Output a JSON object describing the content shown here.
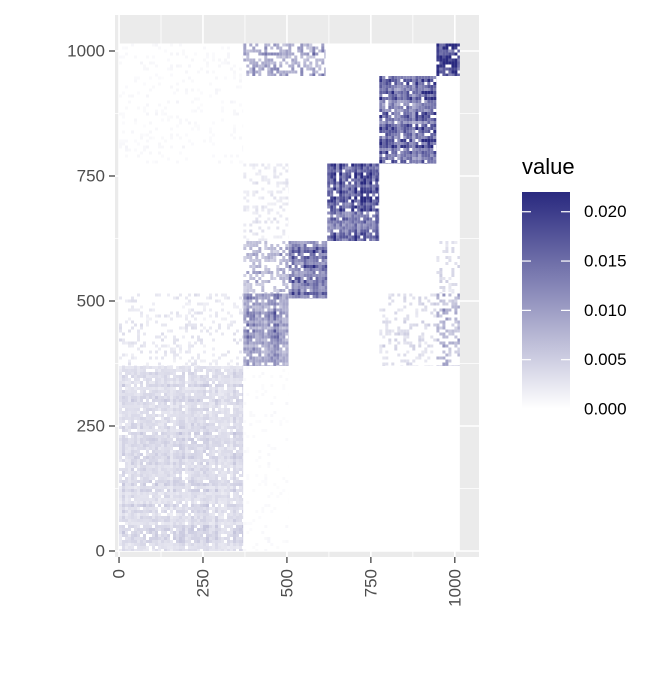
{
  "chart_data": {
    "type": "heatmap",
    "title": "",
    "xlabel": "",
    "ylabel": "",
    "xlim": [
      -12,
      1072
    ],
    "ylim": [
      -12,
      1072
    ],
    "x_ticks": [
      0,
      250,
      500,
      750,
      1000
    ],
    "y_ticks": [
      0,
      250,
      500,
      750,
      1000
    ],
    "x_tick_labels": [
      "0",
      "250",
      "500",
      "750",
      "1000"
    ],
    "y_tick_labels": [
      "0",
      "250",
      "500",
      "750",
      "1000"
    ],
    "grid": true,
    "colorscale": {
      "low": "#ffffff",
      "high": "#29297f"
    },
    "legend": {
      "title": "value",
      "position": "right",
      "min": 0,
      "max": 0.022,
      "ticks": [
        0.0,
        0.005,
        0.01,
        0.015,
        0.02
      ],
      "tick_labels": [
        "0.000",
        "0.005",
        "0.010",
        "0.015",
        "0.020"
      ]
    },
    "blocks": [
      {
        "x": [
          0,
          370
        ],
        "y": [
          0,
          370
        ],
        "value": 0.004,
        "pattern": 0.9
      },
      {
        "x": [
          370,
          505
        ],
        "y": [
          370,
          515
        ],
        "value": 0.012,
        "pattern": 0.9
      },
      {
        "x": [
          505,
          620
        ],
        "y": [
          505,
          620
        ],
        "value": 0.016,
        "pattern": 0.9
      },
      {
        "x": [
          620,
          775
        ],
        "y": [
          620,
          775
        ],
        "value": 0.018,
        "pattern": 0.9
      },
      {
        "x": [
          775,
          945
        ],
        "y": [
          775,
          950
        ],
        "value": 0.017,
        "pattern": 0.9
      },
      {
        "x": [
          945,
          1015
        ],
        "y": [
          950,
          1015
        ],
        "value": 0.02,
        "pattern": 0.9
      },
      {
        "x": [
          370,
          615
        ],
        "y": [
          950,
          1015
        ],
        "value": 0.01,
        "pattern": 0.6
      },
      {
        "x": [
          370,
          505
        ],
        "y": [
          515,
          620
        ],
        "value": 0.008,
        "pattern": 0.55
      },
      {
        "x": [
          945,
          1015
        ],
        "y": [
          370,
          515
        ],
        "value": 0.008,
        "pattern": 0.5
      },
      {
        "x": [
          775,
          945
        ],
        "y": [
          370,
          515
        ],
        "value": 0.004,
        "pattern": 0.3
      },
      {
        "x": [
          945,
          1015
        ],
        "y": [
          515,
          620
        ],
        "value": 0.004,
        "pattern": 0.3
      },
      {
        "x": [
          370,
          505
        ],
        "y": [
          620,
          775
        ],
        "value": 0.003,
        "pattern": 0.25
      },
      {
        "x": [
          0,
          370
        ],
        "y": [
          370,
          515
        ],
        "value": 0.0025,
        "pattern": 0.25
      },
      {
        "x": [
          0,
          370
        ],
        "y": [
          775,
          1015
        ],
        "value": 0.0008,
        "pattern": 0.15
      },
      {
        "x": [
          370,
          505
        ],
        "y": [
          0,
          370
        ],
        "value": 0.0006,
        "pattern": 0.12
      }
    ]
  }
}
